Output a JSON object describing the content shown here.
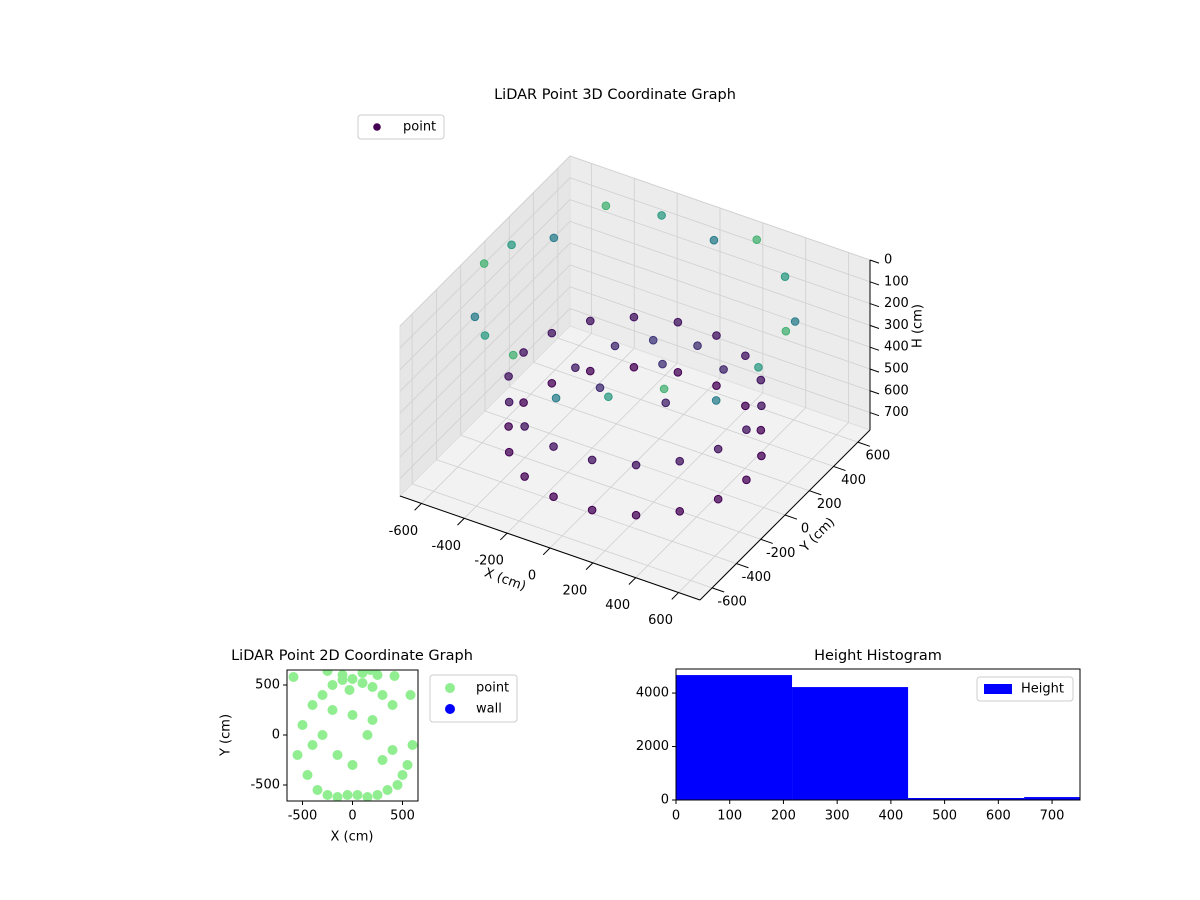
{
  "chart_data": [
    {
      "type": "scatter3d",
      "title": "LiDAR Point 3D Coordinate Graph",
      "xlabel": "X (cm)",
      "ylabel": "Y (cm)",
      "zlabel": "H (cm)",
      "xlim": [
        -700,
        700
      ],
      "ylim": [
        -700,
        700
      ],
      "zlim": [
        0,
        780
      ],
      "xticks": [
        -600,
        -400,
        -200,
        0,
        200,
        400,
        600
      ],
      "yticks": [
        -600,
        -400,
        -200,
        0,
        200,
        400,
        600
      ],
      "zticks": [
        0,
        100,
        200,
        300,
        400,
        500,
        600,
        700
      ],
      "cmap": "viridis",
      "legend": "upper left",
      "grid": true,
      "series": [
        {
          "name": "point",
          "x": [
            520,
            489,
            398,
            260,
            90,
            -90,
            -260,
            -398,
            -489,
            -520,
            -489,
            -398,
            -260,
            -90,
            90,
            260,
            398,
            489,
            520,
            489,
            398,
            260,
            90,
            -90,
            -260,
            -398,
            -489,
            -520,
            -489,
            -398,
            -260,
            -90,
            90,
            260,
            398,
            489,
            100,
            -150,
            200,
            -50,
            300,
            -250,
            0,
            150,
            640,
            563,
            418,
            222,
            0,
            -222,
            -418,
            -563,
            -640,
            -640,
            -563,
            -418,
            -222,
            0,
            222,
            418,
            563,
            640
          ],
          "y": [
            0,
            178,
            334,
            450,
            512,
            512,
            450,
            334,
            178,
            0,
            -178,
            -334,
            -450,
            -512,
            -512,
            -450,
            -334,
            -178,
            0,
            178,
            334,
            450,
            512,
            512,
            450,
            334,
            178,
            0,
            -178,
            -334,
            -450,
            -512,
            -512,
            -450,
            -334,
            -178,
            50,
            100,
            -100,
            -200,
            200,
            -50,
            150,
            250,
            113,
            325,
            498,
            611,
            650,
            611,
            498,
            325,
            113,
            -113,
            -325,
            -498,
            -611,
            -650,
            -611,
            -498,
            -325,
            -113
          ],
          "z": [
            450,
            450,
            450,
            450,
            450,
            450,
            450,
            450,
            450,
            450,
            450,
            450,
            450,
            450,
            450,
            450,
            450,
            450,
            680,
            680,
            680,
            680,
            680,
            680,
            680,
            680,
            680,
            680,
            680,
            680,
            680,
            680,
            680,
            680,
            680,
            680,
            320,
            350,
            380,
            340,
            360,
            400,
            300,
            330,
            20,
            120,
            60,
            20,
            120,
            60,
            20,
            120,
            60,
            20,
            120,
            60,
            20,
            120,
            60,
            20,
            120,
            60
          ]
        }
      ]
    },
    {
      "type": "scatter",
      "title": "LiDAR Point 2D Coordinate Graph",
      "xlabel": "X (cm)",
      "ylabel": "Y (cm)",
      "xlim": [
        -655,
        655
      ],
      "ylim": [
        -660,
        650
      ],
      "xticks": [
        -500,
        0,
        500
      ],
      "yticks": [
        -500,
        0,
        500
      ],
      "legend": "outside right",
      "series": [
        {
          "name": "point",
          "color": "#90ee90",
          "x": [
            -550,
            -500,
            -450,
            -400,
            -350,
            -300,
            -250,
            -200,
            -150,
            -100,
            -50,
            0,
            50,
            100,
            150,
            200,
            250,
            300,
            350,
            400,
            450,
            500,
            550,
            600,
            -300,
            -150,
            0,
            150,
            300,
            -200,
            0,
            200,
            -400,
            400,
            -100,
            100,
            -30,
            250,
            420,
            580,
            -590,
            180,
            -250
          ],
          "y": [
            -200,
            100,
            -400,
            300,
            -550,
            400,
            -600,
            500,
            -620,
            550,
            -600,
            560,
            -600,
            520,
            -620,
            480,
            -600,
            400,
            -550,
            300,
            -500,
            -400,
            -300,
            -100,
            0,
            -200,
            -300,
            0,
            -250,
            250,
            200,
            150,
            -100,
            -150,
            600,
            620,
            450,
            600,
            590,
            400,
            580,
            650,
            640
          ]
        },
        {
          "name": "wall",
          "color": "#0000ff",
          "x": [],
          "y": []
        }
      ]
    },
    {
      "type": "histogram",
      "title": "Height Histogram",
      "bins": [
        0,
        216,
        432,
        648,
        864
      ],
      "xlim": [
        0,
        752
      ],
      "ylim": [
        0,
        4900
      ],
      "xticks": [
        0,
        100,
        200,
        300,
        400,
        500,
        600,
        700
      ],
      "yticks": [
        0,
        2000,
        4000
      ],
      "legend": "upper right",
      "series": [
        {
          "name": "Height",
          "color": "#0000ff",
          "values": [
            4673,
            4224,
            75,
            110
          ]
        }
      ]
    }
  ]
}
